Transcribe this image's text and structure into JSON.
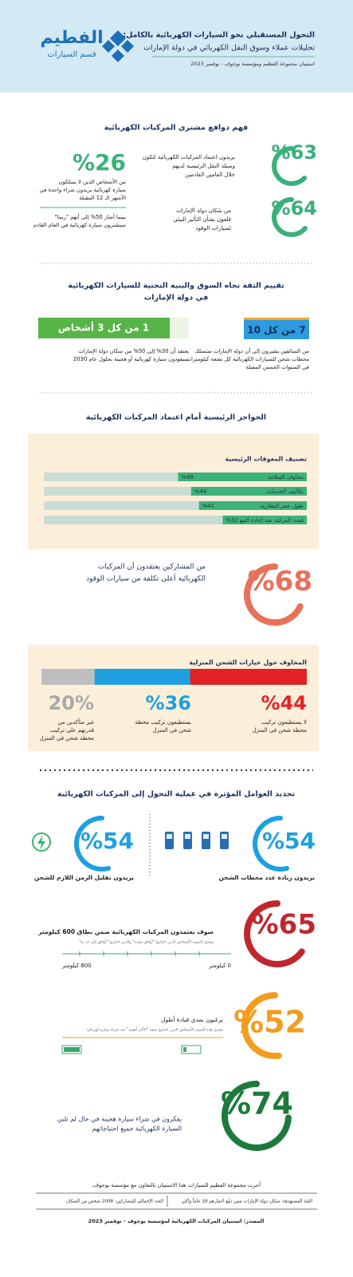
{
  "header": {
    "logo_name": "الفطيم",
    "logo_sub": "قسم السيارات",
    "title": "التحول المستقبلي نحو السيارات الكهربائية بالكامل:",
    "subtitle": "تحليلات عملاء وسوق النقل الكهربائي في دولة الإمارات",
    "survey": "استبيان مجموعة الفطيم ومؤسسة يوجوف - نوفمبر 2023"
  },
  "motives": {
    "title": "فهم دوافع مشتري المركبات الكهربائية",
    "adopt": {
      "percent": {
        "value": 63,
        "label": "%63"
      },
      "lines": [
        "يريدون اعتماد المركبات الكهربائية لتكون",
        "وسيلة النقل الرئيسية لديهم",
        "خلال العامين القادمين"
      ]
    },
    "environment": {
      "percent": {
        "value": 64,
        "label": "%64"
      },
      "lines": [
        "من سُكان دولة الإمارات",
        "قلقون بشأن التأثير البيئي",
        "لسيارات الوقود"
      ]
    },
    "buy": {
      "percent": "%26",
      "lines": [
        "من الأشخاص الذين لا يمتلكون",
        "سيارة كهربائية يريدون شراء واحدة في",
        "الأشهر الـ 12 المقبلة"
      ]
    },
    "maybe": {
      "lines": [
        "بينما أشار 50% إلى أنهم \"ربما\"",
        "سيشترون سيارة كهربائية في العام القادم"
      ]
    }
  },
  "confidence": {
    "title_lines": [
      "تقييم الثقة تجاه السوق والبنية التحتية للسيارات الكهربائية",
      "في دولة الإمارات"
    ],
    "stations": {
      "badge": "7 من كل 10",
      "lines": [
        "من السائقين يشيرون إلى أن دولة الإمارات ستمتلك",
        "محطات شحن للسيارات الكهربائية كل بضعة كيلومترات",
        "في السنوات الخمس المقبلة"
      ]
    },
    "hybrid": {
      "badge": "1 من كل 3 أشخاص",
      "lines": [
        "يعتقد أن 30% إلى 50% من سكان دولة الإمارات",
        "سيقودون سيارة كهربائية أو هجينة بحلول عام 2030"
      ]
    }
  },
  "barriers": {
    "title": "الحواجز الرئيسية أمام اعتماد المركبات الكهربائية",
    "box_title": "تصنيف المعوقات الرئيسية",
    "items": [
      {
        "name": "مخاوف السلامة",
        "value": {
          "value": 49,
          "label": "%49"
        }
      },
      {
        "name": "تكاليف الخدمات",
        "value": {
          "value": 44,
          "label": "%44"
        }
      },
      {
        "name": "طول عمر البطارية",
        "value": {
          "value": 41,
          "label": "%41"
        }
      },
      {
        "name": "قيمة المركبة عند إعادة البيع",
        "value": {
          "value": 32,
          "label": "%32"
        }
      }
    ]
  },
  "cost": {
    "percent": {
      "value": 68,
      "label": "%68"
    },
    "lines": [
      "من المشاركين يعتقدون أن المركبات",
      "الكهربائية أعلى تكلفة من سيارات الوقود"
    ]
  },
  "charging": {
    "title": "المخاوف حول خيارات الشحن المنزلية",
    "segments": [
      {
        "value": {
          "value": 44,
          "label": "%44"
        },
        "lines": [
          "لا يستطيعون تركيب",
          "محطة شحن في المنزل"
        ]
      },
      {
        "value": {
          "value": 36,
          "label": "%36"
        },
        "lines": [
          "يستطيعون تركيب محطة",
          "شحن في المنزل"
        ]
      },
      {
        "value": {
          "value": 20,
          "label": "20%"
        },
        "lines": [
          "غير متأكدين من",
          "قدرتهم على تركيب",
          "محطة شحن في المنزل"
        ]
      }
    ]
  },
  "factors": {
    "title": "تحديد العوامل المؤثرة في عملية التحول إلى المركبات الكهربائية",
    "stations": {
      "percent": {
        "value": 54,
        "label": "%54"
      },
      "line": "يريدون زيادة عدد محطات الشحن"
    },
    "time": {
      "percent": {
        "value": 54,
        "label": "%54"
      },
      "line": "يريدون تقليل الزمن اللازم للشحن"
    }
  },
  "range": {
    "percent": {
      "value": 65,
      "label": "%65"
    },
    "line": "سوف يعتمدون المركبات الكهربائية ضمن نطاق 600 كيلومتر",
    "note": "تشمل النسبة الأشخاص الذين اختاروا \"أوافق بشدة\" والذين اختاروا \"أوافق إلى حد ما\"",
    "start": "0 كيلومتر",
    "end": "600 كيلومتر"
  },
  "longer": {
    "percent": {
      "value": 52,
      "label": "%52"
    },
    "line": "يرغبون بمدى قيادة أطول",
    "note": "تشمل هذه النسبة الأشخاص الذين اختاروا صفة \"الأكثر أهمية\" عند شراء سيارة كهربائية"
  },
  "hybrid": {
    "percent": {
      "value": 74,
      "label": "%74"
    },
    "lines": [
      "يفكرون في شراء سيارة هجينة في حال لم تلبي",
      "السيارة الكهربائية جميع احتياجاتهم"
    ]
  },
  "footer": {
    "conducted": "أجرت مجموعة الفطيم للسيارات هذا الاستبيان بالتعاون مع مؤسسة يوجوف.",
    "audience": "الفئة المستهدفة: سكان دولة الإمارات ممن تبلغ أعمارهم 18 عاماً وأكثر",
    "total": "العدد الإجمالي للمشاركين: 2008 شخص من السكان",
    "source": "المصدر: استبيان المركبات الكهربائية لمؤسسة يوجوف - نوفمبر 2023"
  }
}
